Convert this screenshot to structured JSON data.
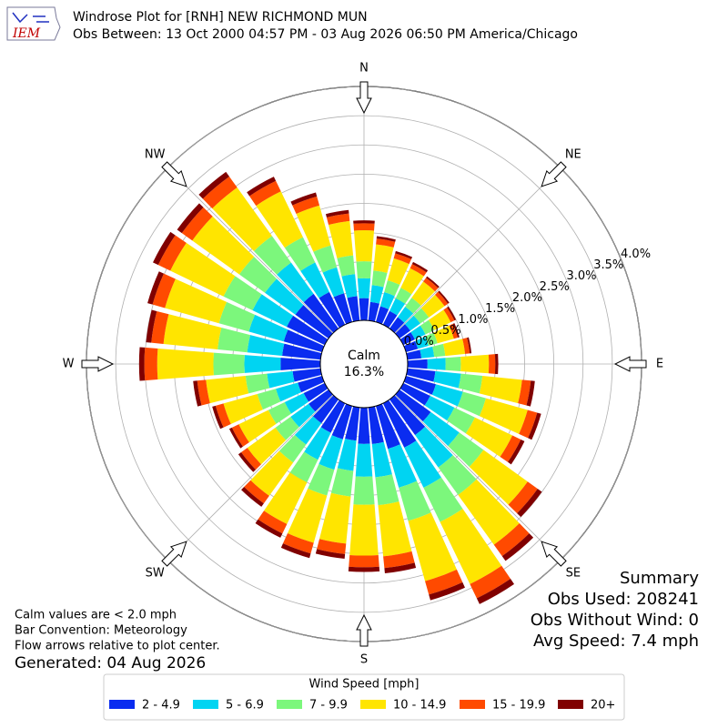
{
  "logo": "IEM",
  "chart_data": {
    "type": "windrose",
    "title": "Windrose Plot for [RNH] NEW RICHMOND MUN",
    "subtitle": "Obs Between: 13 Oct 2000 04:57 PM - 03 Aug 2026 06:50 PM America/Chicago",
    "calm_label": "Calm",
    "calm": {
      "value": 16.3,
      "label": "16.3%"
    },
    "rlim": [
      0,
      4
    ],
    "rticks": [
      {
        "value": 0,
        "label": "0.0%"
      },
      {
        "value": 0.5,
        "label": "0.5%"
      },
      {
        "value": 1,
        "label": "1.0%"
      },
      {
        "value": 1.5,
        "label": "1.5%"
      },
      {
        "value": 2,
        "label": "2.0%"
      },
      {
        "value": 2.5,
        "label": "2.5%"
      },
      {
        "value": 3,
        "label": "3.0%"
      },
      {
        "value": 3.5,
        "label": "3.5%"
      },
      {
        "value": 4,
        "label": "4.0%"
      }
    ],
    "compass": [
      {
        "label": "N",
        "angle": 0
      },
      {
        "label": "NE",
        "angle": 45
      },
      {
        "label": "E",
        "angle": 90
      },
      {
        "label": "SE",
        "angle": 135
      },
      {
        "label": "S",
        "angle": 180
      },
      {
        "label": "SW",
        "angle": 225
      },
      {
        "label": "W",
        "angle": 270
      },
      {
        "label": "NW",
        "angle": 315
      }
    ],
    "directions": [
      0,
      10,
      20,
      30,
      40,
      50,
      60,
      70,
      80,
      90,
      100,
      110,
      120,
      130,
      140,
      150,
      160,
      170,
      180,
      190,
      200,
      210,
      220,
      230,
      240,
      250,
      260,
      270,
      280,
      290,
      300,
      310,
      320,
      330,
      340,
      350
    ],
    "legend_title": "Wind Speed [mph]",
    "series": [
      {
        "name": "2 - 4.9",
        "color": "#0a2cf0",
        "values": [
          0.38,
          0.32,
          0.28,
          0.26,
          0.24,
          0.23,
          0.22,
          0.21,
          0.24,
          0.34,
          0.48,
          0.53,
          0.51,
          0.66,
          0.75,
          0.84,
          0.76,
          0.63,
          0.62,
          0.57,
          0.59,
          0.56,
          0.5,
          0.42,
          0.4,
          0.43,
          0.48,
          0.68,
          0.66,
          0.68,
          0.72,
          0.7,
          0.73,
          0.62,
          0.51,
          0.42
        ]
      },
      {
        "name": "5 - 6.9",
        "color": "#00d4f2",
        "values": [
          0.34,
          0.29,
          0.25,
          0.24,
          0.22,
          0.21,
          0.2,
          0.19,
          0.22,
          0.31,
          0.44,
          0.48,
          0.46,
          0.6,
          0.68,
          0.76,
          0.69,
          0.57,
          0.56,
          0.52,
          0.54,
          0.51,
          0.45,
          0.38,
          0.36,
          0.39,
          0.44,
          0.62,
          0.6,
          0.62,
          0.65,
          0.64,
          0.66,
          0.56,
          0.46,
          0.38
        ]
      },
      {
        "name": "7 - 9.9",
        "color": "#7cf77c",
        "values": [
          0.29,
          0.25,
          0.21,
          0.2,
          0.19,
          0.18,
          0.17,
          0.16,
          0.19,
          0.26,
          0.37,
          0.41,
          0.39,
          0.51,
          0.58,
          0.65,
          0.59,
          0.48,
          0.48,
          0.44,
          0.46,
          0.43,
          0.38,
          0.32,
          0.31,
          0.33,
          0.37,
          0.53,
          0.51,
          0.53,
          0.55,
          0.54,
          0.56,
          0.48,
          0.39,
          0.32
        ]
      },
      {
        "name": "10 - 14.9",
        "color": "#ffe500",
        "values": [
          0.53,
          0.45,
          0.39,
          0.37,
          0.34,
          0.33,
          0.31,
          0.29,
          0.34,
          0.48,
          0.68,
          0.74,
          0.71,
          0.93,
          1.05,
          1.18,
          1.07,
          0.88,
          0.87,
          0.81,
          0.84,
          0.79,
          0.7,
          0.59,
          0.56,
          0.6,
          0.68,
          0.96,
          0.93,
          0.96,
          1.01,
          0.99,
          1.02,
          0.87,
          0.71,
          0.59
        ]
      },
      {
        "name": "15 - 19.9",
        "color": "#ff4a00",
        "values": [
          0.12,
          0.1,
          0.09,
          0.08,
          0.08,
          0.07,
          0.07,
          0.07,
          0.08,
          0.11,
          0.15,
          0.17,
          0.16,
          0.21,
          0.24,
          0.27,
          0.24,
          0.2,
          0.2,
          0.18,
          0.19,
          0.18,
          0.16,
          0.13,
          0.13,
          0.14,
          0.15,
          0.22,
          0.21,
          0.22,
          0.23,
          0.22,
          0.23,
          0.2,
          0.16,
          0.13
        ]
      },
      {
        "name": "20+",
        "color": "#800000",
        "values": [
          0.05,
          0.04,
          0.04,
          0.04,
          0.03,
          0.03,
          0.03,
          0.03,
          0.03,
          0.05,
          0.07,
          0.07,
          0.07,
          0.09,
          0.1,
          0.11,
          0.1,
          0.09,
          0.08,
          0.08,
          0.08,
          0.08,
          0.07,
          0.06,
          0.05,
          0.06,
          0.07,
          0.09,
          0.09,
          0.09,
          0.1,
          0.1,
          0.1,
          0.08,
          0.07,
          0.06
        ]
      }
    ],
    "notes": [
      "Calm values are < 2.0 mph",
      "Bar Convention: Meteorology",
      "Flow arrows relative to plot center."
    ],
    "generated": "Generated: 04 Aug 2026",
    "summary": [
      "Summary",
      "Obs Used: 208241",
      "Obs Without Wind: 0",
      "Avg Speed: 7.4 mph"
    ]
  }
}
